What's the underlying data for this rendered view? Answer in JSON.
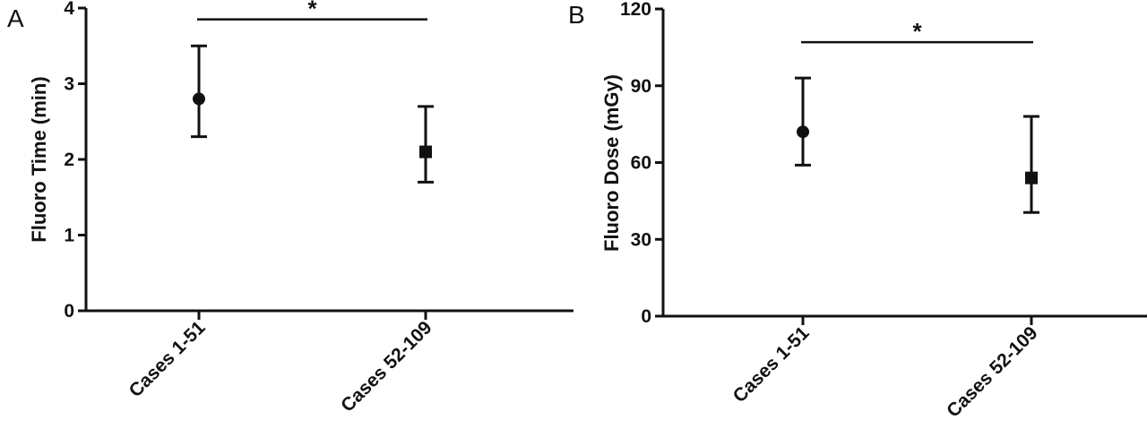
{
  "chart_data": [
    {
      "type": "scatter",
      "panel_label": "A",
      "ylabel": "Fluoro Time (min)",
      "ylim": [
        0,
        4
      ],
      "yticks": [
        0,
        1,
        2,
        3,
        4
      ],
      "categories": [
        "Cases 1-51",
        "Cases 52-109"
      ],
      "series": [
        {
          "marker": "circle",
          "category": "Cases 1-51",
          "value": 2.8,
          "error_low": 2.3,
          "error_high": 3.5
        },
        {
          "marker": "square",
          "category": "Cases 52-109",
          "value": 2.1,
          "error_low": 1.7,
          "error_high": 2.7
        }
      ],
      "significance": {
        "from": "Cases 1-51",
        "to": "Cases 52-109",
        "y": 3.85,
        "label": "*"
      }
    },
    {
      "type": "scatter",
      "panel_label": "B",
      "ylabel": "Fluoro Dose (mGy)",
      "ylim": [
        0,
        120
      ],
      "yticks": [
        0,
        30,
        60,
        90,
        120
      ],
      "categories": [
        "Cases 1-51",
        "Cases 52-109"
      ],
      "series": [
        {
          "marker": "circle",
          "category": "Cases 1-51",
          "value": 72,
          "error_low": 59,
          "error_high": 93
        },
        {
          "marker": "square",
          "category": "Cases 52-109",
          "value": 54,
          "error_low": 40.5,
          "error_high": 78
        }
      ],
      "significance": {
        "from": "Cases 1-51",
        "to": "Cases 52-109",
        "y": 107,
        "label": "*"
      }
    }
  ]
}
